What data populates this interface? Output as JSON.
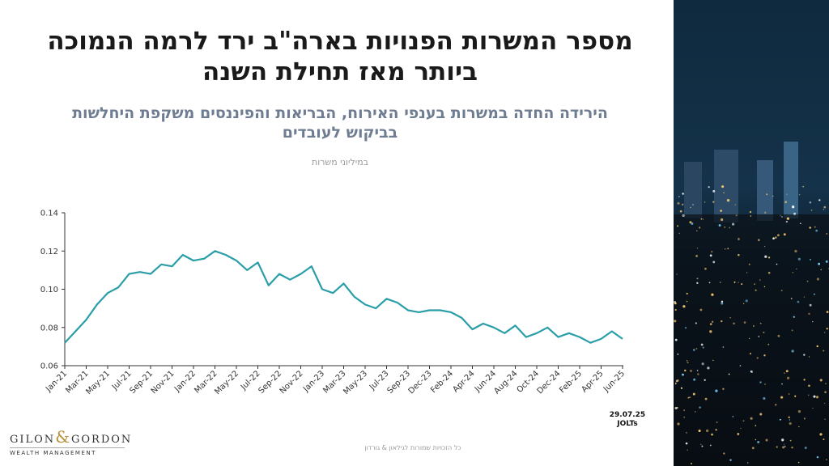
{
  "slide": {
    "title_lines": [
      "מספר המשרות הפנויות בארה\"ב ירד לרמה הנמוכה",
      "ביותר מאז תחילת השנה"
    ],
    "subtitle_lines": [
      "הירידה החדה במשרות בענפי האירוח, הבריאות והפיננסים משקפת היחלשות",
      "בביקוש לעובדים"
    ],
    "source_lines": [
      "29.07.25",
      "JOLTs"
    ],
    "footer": "כל הזכויות שמורות לגילאון & גורדון",
    "logo": {
      "left": "GILON",
      "amp": "&",
      "right": "GORDON",
      "tagline": "WEALTH MANAGEMENT"
    }
  },
  "chart_data": {
    "type": "line",
    "unit_label": "במיליוני משרות",
    "color": "#2a9ea8",
    "categories": [
      "Jan-21",
      null,
      "Mar-21",
      null,
      "May-21",
      null,
      "Jul-21",
      null,
      "Sep-21",
      null,
      "Nov-21",
      null,
      "Jan-22",
      null,
      "Mar-22",
      null,
      "May-22",
      null,
      "Jul-22",
      null,
      "Sep-22",
      null,
      "Nov-22",
      null,
      "Jan-23",
      null,
      "Mar-23",
      null,
      "May-23",
      null,
      "Jul-23",
      null,
      "Sep-23",
      null,
      "Dec-23",
      null,
      "Feb-24",
      null,
      "Apr-24",
      null,
      "Jun-24",
      null,
      "Aug-24",
      null,
      "Oct-24",
      null,
      "Dec-24",
      null,
      "Feb-25",
      null,
      "Apr-25",
      null,
      "Jun-25"
    ],
    "values": [
      0.072,
      0.078,
      0.084,
      0.092,
      0.098,
      0.101,
      0.108,
      0.109,
      0.108,
      0.113,
      0.112,
      0.118,
      0.115,
      0.116,
      0.12,
      0.118,
      0.115,
      0.11,
      0.114,
      0.102,
      0.108,
      0.105,
      0.108,
      0.112,
      0.1,
      0.098,
      0.103,
      0.096,
      0.092,
      0.09,
      0.095,
      0.093,
      0.089,
      0.088,
      0.089,
      0.089,
      0.088,
      0.085,
      0.079,
      0.082,
      0.08,
      0.077,
      0.081,
      0.075,
      0.077,
      0.08,
      0.075,
      0.077,
      0.075,
      0.072,
      0.074,
      0.078,
      0.074
    ],
    "ylim": [
      0.06,
      0.14
    ],
    "yticks": [
      0.06,
      0.08,
      {
        "value": 0.1,
        "label": "0.10"
      },
      0.12,
      0.14
    ],
    "grid": false
  }
}
